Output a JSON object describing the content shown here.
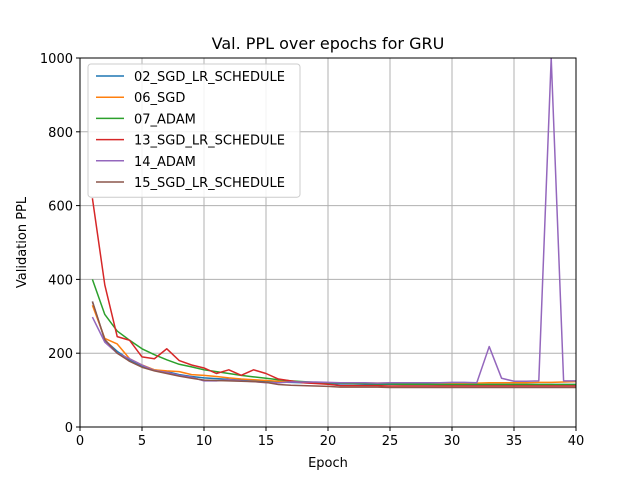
{
  "chart_data": {
    "type": "line",
    "title": "Val. PPL over epochs for GRU",
    "xlabel": "Epoch",
    "ylabel": "Validation PPL",
    "xlim": [
      0,
      40
    ],
    "ylim": [
      0,
      1000
    ],
    "xticks": [
      0,
      5,
      10,
      15,
      20,
      25,
      30,
      35,
      40
    ],
    "yticks": [
      0,
      200,
      400,
      600,
      800,
      1000
    ],
    "grid": true,
    "legend_position": "upper-left",
    "x": [
      1,
      2,
      3,
      4,
      5,
      6,
      7,
      8,
      9,
      10,
      11,
      12,
      13,
      14,
      15,
      16,
      17,
      18,
      19,
      20,
      21,
      22,
      23,
      24,
      25,
      26,
      27,
      28,
      29,
      30,
      31,
      32,
      33,
      34,
      35,
      36,
      37,
      38,
      39,
      40
    ],
    "series": [
      {
        "name": "02_SGD_LR_SCHEDULE",
        "color": "#1f77b4",
        "values": [
          340,
          235,
          205,
          182,
          165,
          155,
          150,
          142,
          137,
          133,
          131,
          129,
          127,
          126,
          124,
          122,
          121,
          120,
          119,
          118,
          117,
          117,
          116,
          116,
          116,
          115,
          115,
          115,
          115,
          115,
          115,
          115,
          115,
          115,
          115,
          115,
          115,
          115,
          115,
          115
        ]
      },
      {
        "name": "06_SGD",
        "color": "#ff7f0e",
        "values": [
          330,
          240,
          225,
          185,
          168,
          155,
          152,
          150,
          142,
          140,
          137,
          133,
          130,
          128,
          126,
          124,
          123,
          122,
          121,
          120,
          120,
          119,
          119,
          119,
          119,
          119,
          119,
          119,
          119,
          119,
          119,
          119,
          120,
          120,
          120,
          120,
          121,
          121,
          122,
          123
        ]
      },
      {
        "name": "07_ADAM",
        "color": "#2ca02c",
        "values": [
          400,
          305,
          260,
          235,
          212,
          196,
          182,
          170,
          163,
          155,
          150,
          145,
          140,
          136,
          132,
          128,
          125,
          123,
          121,
          120,
          119,
          118,
          118,
          117,
          117,
          116,
          116,
          116,
          115,
          115,
          115,
          115,
          115,
          115,
          115,
          115,
          115,
          115,
          115,
          115
        ]
      },
      {
        "name": "13_SGD_LR_SCHEDULE",
        "color": "#d62728",
        "values": [
          620,
          385,
          245,
          235,
          190,
          185,
          212,
          180,
          168,
          160,
          145,
          155,
          140,
          155,
          145,
          130,
          125,
          120,
          118,
          116,
          112,
          112,
          112,
          112,
          111,
          111,
          111,
          111,
          111,
          111,
          111,
          111,
          111,
          111,
          111,
          111,
          111,
          111,
          111,
          111
        ]
      },
      {
        "name": "14_ADAM",
        "color": "#9467bd",
        "values": [
          298,
          230,
          200,
          185,
          168,
          153,
          148,
          140,
          135,
          125,
          125,
          128,
          125,
          123,
          120,
          120,
          122,
          122,
          122,
          121,
          120,
          120,
          120,
          119,
          120,
          120,
          120,
          120,
          120,
          121,
          121,
          120,
          218,
          132,
          124,
          124,
          125,
          1000,
          125,
          125
        ]
      },
      {
        "name": "15_SGD_LR_SCHEDULE",
        "color": "#8c564b",
        "values": [
          340,
          237,
          200,
          178,
          162,
          152,
          145,
          138,
          132,
          127,
          126,
          125,
          124,
          123,
          121,
          115,
          113,
          112,
          111,
          110,
          108,
          108,
          108,
          108,
          107,
          107,
          107,
          107,
          107,
          107,
          107,
          107,
          107,
          107,
          107,
          107,
          107,
          107,
          107,
          107
        ]
      }
    ]
  }
}
